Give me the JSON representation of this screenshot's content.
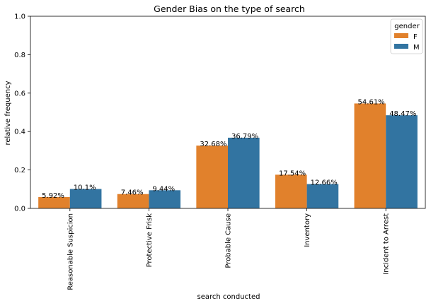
{
  "chart_data": {
    "type": "bar",
    "title": "Gender Bias on the type of search",
    "xlabel": "search conducted",
    "ylabel": "relative frequency",
    "ylim": [
      0,
      1.0
    ],
    "yticks": [
      "0.0",
      "0.2",
      "0.4",
      "0.6",
      "0.8",
      "1.0"
    ],
    "categories": [
      "Reasonable Suspicion",
      "Protective Frisk",
      "Probable Cause",
      "Inventory",
      "Incident to Arrest"
    ],
    "series": [
      {
        "name": "F",
        "color": "#e1812c",
        "values": [
          0.0592,
          0.0746,
          0.3268,
          0.1754,
          0.5461
        ],
        "labels": [
          "5.92%",
          "7.46%",
          "32.68%",
          "17.54%",
          "54.61%"
        ]
      },
      {
        "name": "M",
        "color": "#3274a1",
        "values": [
          0.101,
          0.0944,
          0.3679,
          0.1266,
          0.4847
        ],
        "labels": [
          "10.1%",
          "9.44%",
          "36.79%",
          "12.66%",
          "48.47%"
        ]
      }
    ],
    "legend": {
      "title": "gender",
      "position": "top-right"
    },
    "grid": false
  }
}
